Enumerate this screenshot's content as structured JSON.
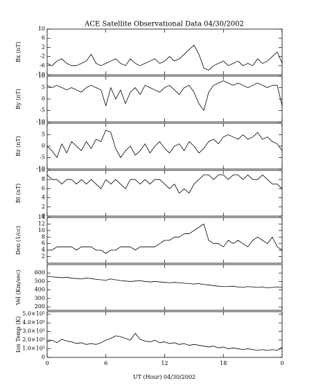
{
  "title": "ACE Satellite Observational Data   04/30/2002",
  "xlabel": "UT (Hour)   04/30/2002",
  "xlim": [
    0,
    24
  ],
  "xticks": [
    0,
    6,
    12,
    18,
    {
      "value": 24,
      "label": "0"
    }
  ],
  "x": [
    0,
    0.5,
    1,
    1.5,
    2,
    2.5,
    3,
    3.5,
    4,
    4.5,
    5,
    5.5,
    6,
    6.5,
    7,
    7.5,
    8,
    8.5,
    9,
    9.5,
    10,
    10.5,
    11,
    11.5,
    12,
    12.5,
    13,
    13.5,
    14,
    14.5,
    15,
    15.5,
    16,
    16.5,
    17,
    17.5,
    18,
    18.5,
    19,
    19.5,
    20,
    20.5,
    21,
    21.5,
    22,
    22.5,
    23,
    23.5,
    24
  ],
  "chart_data": [
    {
      "type": "line",
      "ylabel": "Bx (nT)",
      "ylim": [
        -10,
        10
      ],
      "yticks": [
        10,
        6,
        2,
        -2,
        -6,
        -10
      ],
      "color": "#000000",
      "values": [
        -5,
        -6,
        -4,
        -3,
        -5,
        -6,
        -6,
        -5,
        -4,
        -1,
        -5,
        -6,
        -5,
        -4,
        -3,
        -5,
        -6,
        -3,
        -5,
        -6,
        -5,
        -4,
        -3,
        -5,
        -4,
        -2,
        -4,
        -3,
        -1,
        1,
        3,
        -1,
        -7,
        -8,
        -6,
        -5,
        -4,
        -6,
        -5,
        -4,
        -6,
        -5,
        -6,
        -3,
        -5,
        -4,
        -2,
        0,
        -5
      ]
    },
    {
      "type": "line",
      "ylabel": "By (nT)",
      "ylim": [
        -10,
        10
      ],
      "yticks": [
        10,
        5,
        0,
        -5,
        -10
      ],
      "color": "#000000",
      "values": [
        6,
        5,
        6,
        5,
        4,
        5,
        4,
        3,
        5,
        6,
        5,
        4,
        -3,
        5,
        0,
        4,
        -2,
        3,
        5,
        2,
        6,
        5,
        4,
        3,
        5,
        6,
        4,
        2,
        5,
        6,
        3,
        -2,
        -5,
        3,
        6,
        7,
        8,
        7,
        6,
        7,
        6,
        5,
        6,
        7,
        6,
        5,
        6,
        6,
        -3
      ]
    },
    {
      "type": "line",
      "ylabel": "Bz (nT)",
      "ylim": [
        -10,
        10
      ],
      "yticks": [
        10,
        5,
        0,
        -5,
        -10
      ],
      "color": "#000000",
      "values": [
        0,
        -2,
        -5,
        1,
        -3,
        2,
        0,
        -2,
        2,
        -1,
        3,
        2,
        7,
        6,
        -1,
        -5,
        -2,
        0,
        -4,
        -2,
        1,
        -3,
        0,
        2,
        -1,
        -3,
        0,
        1,
        -2,
        2,
        0,
        -3,
        -1,
        2,
        3,
        1,
        4,
        5,
        4,
        3,
        5,
        3,
        4,
        6,
        3,
        4,
        2,
        1,
        -2
      ]
    },
    {
      "type": "line",
      "ylabel": "Bt (nT)",
      "ylim": [
        0,
        10
      ],
      "yticks": [
        10,
        8,
        6,
        4,
        2,
        0
      ],
      "color": "#000000",
      "values": [
        9,
        8,
        8,
        7,
        8,
        8,
        7,
        8,
        7,
        8,
        7,
        6,
        8,
        7,
        8,
        7,
        6,
        8,
        8,
        7,
        8,
        7,
        8,
        8,
        7,
        6,
        7,
        5,
        6,
        5,
        7,
        8,
        9,
        9,
        8,
        9,
        9,
        8,
        9,
        9,
        8,
        9,
        8,
        8,
        9,
        8,
        7,
        7,
        6
      ]
    },
    {
      "type": "line",
      "ylabel": "Den (1/cc)",
      "ylim": [
        0,
        14
      ],
      "yticks": [
        14,
        12,
        10,
        8,
        6,
        4,
        2
      ],
      "color": "#000000",
      "values": [
        4,
        4,
        5,
        5,
        5,
        5,
        4,
        5,
        5,
        5,
        4,
        4,
        3,
        4,
        4,
        5,
        5,
        5,
        4,
        5,
        5,
        5,
        5,
        6,
        7,
        7,
        8,
        8,
        9,
        9,
        10,
        11,
        12,
        7,
        6,
        6,
        5,
        7,
        6,
        7,
        6,
        5,
        7,
        8,
        7,
        6,
        8,
        5,
        4
      ]
    },
    {
      "type": "line",
      "ylabel": "Vel (Km/sec)",
      "ylim": [
        160,
        700
      ],
      "yticks": [
        600,
        500,
        400,
        300,
        200
      ],
      "color": "#000000",
      "values": [
        560,
        555,
        550,
        545,
        550,
        540,
        535,
        530,
        540,
        535,
        525,
        520,
        515,
        530,
        520,
        510,
        505,
        500,
        505,
        510,
        500,
        495,
        500,
        495,
        490,
        485,
        490,
        485,
        480,
        475,
        470,
        475,
        465,
        460,
        450,
        445,
        440,
        440,
        445,
        435,
        430,
        440,
        435,
        430,
        435,
        425,
        430,
        435,
        430
      ]
    },
    {
      "type": "line",
      "ylabel": "Ion Temp (K)",
      "ylim": [
        0,
        530000
      ],
      "yticks": [
        {
          "value": 500000,
          "label": "5.0×10⁵"
        },
        {
          "value": 400000,
          "label": "4.0×10⁵"
        },
        {
          "value": 300000,
          "label": "3.0×10⁵"
        },
        {
          "value": 200000,
          "label": "2.0×10⁵"
        },
        {
          "value": 100000,
          "label": "1.0×10⁵"
        },
        0
      ],
      "color": "#000000",
      "values": [
        180000,
        200000,
        170000,
        210000,
        190000,
        180000,
        160000,
        170000,
        150000,
        160000,
        150000,
        170000,
        200000,
        220000,
        250000,
        240000,
        220000,
        200000,
        280000,
        210000,
        190000,
        180000,
        200000,
        170000,
        180000,
        160000,
        170000,
        150000,
        160000,
        140000,
        150000,
        140000,
        130000,
        120000,
        130000,
        110000,
        120000,
        100000,
        110000,
        100000,
        90000,
        100000,
        90000,
        80000,
        90000,
        80000,
        90000,
        80000,
        120000
      ]
    }
  ]
}
